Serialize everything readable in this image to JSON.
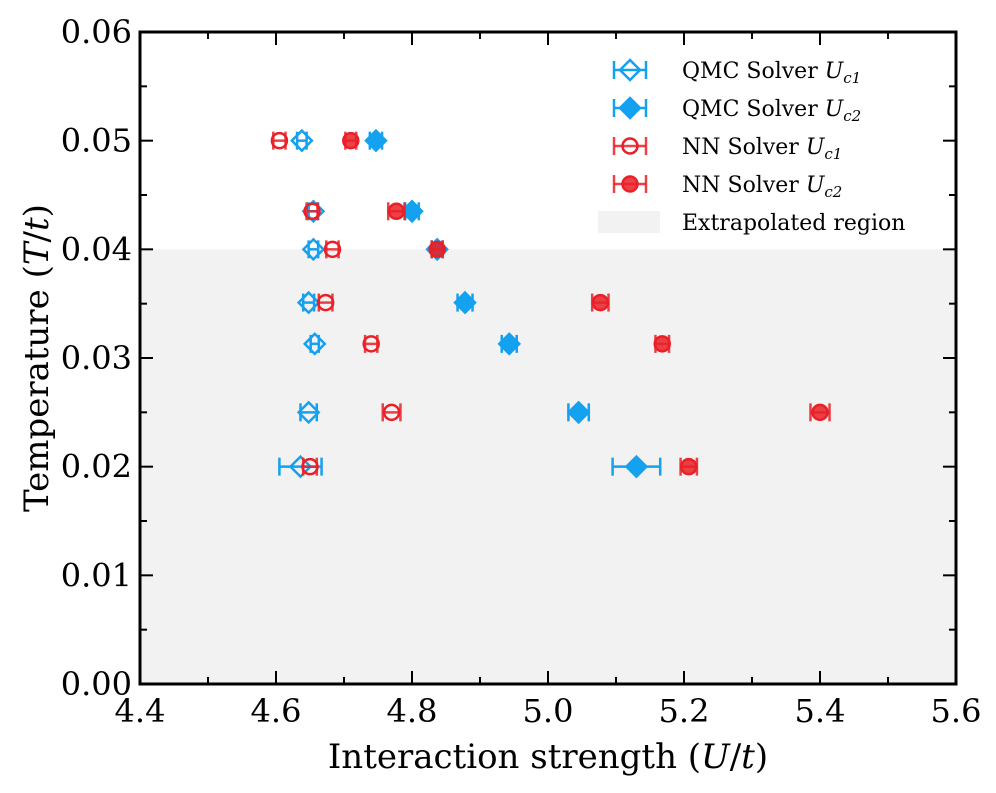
{
  "chart_data": {
    "type": "scatter",
    "xlabel": "Interaction strength (U/t)",
    "ylabel": "Temperature (T/t)",
    "xlim": [
      4.4,
      5.6
    ],
    "ylim": [
      0.0,
      0.06
    ],
    "x_ticks": [
      "4.4",
      "4.6",
      "4.8",
      "5.0",
      "5.2",
      "5.4",
      "5.6"
    ],
    "y_ticks": [
      "0.00",
      "0.01",
      "0.02",
      "0.03",
      "0.04",
      "0.05",
      "0.06"
    ],
    "x_tick_values": [
      4.4,
      4.6,
      4.8,
      5.0,
      5.2,
      5.4,
      5.6
    ],
    "y_tick_values": [
      0.0,
      0.01,
      0.02,
      0.03,
      0.04,
      0.05,
      0.06
    ],
    "shaded_region": {
      "label": "Extrapolated region",
      "y_range": [
        0.0,
        0.04
      ],
      "color": "#f2f2f2"
    },
    "series": [
      {
        "name": "QMC Solver U_c1",
        "label_text": "QMC Solver ",
        "label_sym": "U",
        "label_sub": "c1",
        "marker": "diamond",
        "filled": false,
        "color": "#13a1f0",
        "points": [
          {
            "x": 4.636,
            "y": 0.02,
            "xerr": 0.031
          },
          {
            "x": 4.648,
            "y": 0.025,
            "xerr": 0.012
          },
          {
            "x": 4.657,
            "y": 0.0313,
            "xerr": 0.006
          },
          {
            "x": 4.648,
            "y": 0.0351,
            "xerr": 0.008
          },
          {
            "x": 4.655,
            "y": 0.04,
            "xerr": 0.007
          },
          {
            "x": 4.655,
            "y": 0.0435,
            "xerr": 0.007
          },
          {
            "x": 4.638,
            "y": 0.05,
            "xerr": 0.007
          }
        ]
      },
      {
        "name": "QMC Solver U_c2",
        "label_text": "QMC Solver ",
        "label_sym": "U",
        "label_sub": "c2",
        "marker": "diamond",
        "filled": true,
        "color": "#13a1f0",
        "points": [
          {
            "x": 5.13,
            "y": 0.02,
            "xerr": 0.035
          },
          {
            "x": 5.045,
            "y": 0.025,
            "xerr": 0.015
          },
          {
            "x": 4.943,
            "y": 0.0313,
            "xerr": 0.011
          },
          {
            "x": 4.878,
            "y": 0.0351,
            "xerr": 0.011
          },
          {
            "x": 4.837,
            "y": 0.04,
            "xerr": 0.008
          },
          {
            "x": 4.8,
            "y": 0.0435,
            "xerr": 0.01
          },
          {
            "x": 4.747,
            "y": 0.05,
            "xerr": 0.009
          }
        ]
      },
      {
        "name": "NN Solver U_c1",
        "label_text": "NN Solver ",
        "label_sym": "U",
        "label_sub": "c1",
        "marker": "circle",
        "filled": false,
        "color": "#e92027",
        "points": [
          {
            "x": 4.65,
            "y": 0.02,
            "xerr": 0.01
          },
          {
            "x": 4.77,
            "y": 0.025,
            "xerr": 0.013
          },
          {
            "x": 4.74,
            "y": 0.0313,
            "xerr": 0.009
          },
          {
            "x": 4.673,
            "y": 0.0351,
            "xerr": 0.01
          },
          {
            "x": 4.683,
            "y": 0.04,
            "xerr": 0.009
          },
          {
            "x": 4.653,
            "y": 0.0435,
            "xerr": 0.008
          },
          {
            "x": 4.605,
            "y": 0.05,
            "xerr": 0.009
          }
        ]
      },
      {
        "name": "NN Solver U_c2",
        "label_text": "NN Solver ",
        "label_sym": "U",
        "label_sub": "c2",
        "marker": "circle",
        "filled": true,
        "color": "#e92027",
        "points": [
          {
            "x": 5.207,
            "y": 0.02,
            "xerr": 0.012
          },
          {
            "x": 5.4,
            "y": 0.025,
            "xerr": 0.014
          },
          {
            "x": 5.168,
            "y": 0.0313,
            "xerr": 0.01
          },
          {
            "x": 5.077,
            "y": 0.0351,
            "xerr": 0.012
          },
          {
            "x": 4.837,
            "y": 0.04,
            "xerr": 0.008
          },
          {
            "x": 4.777,
            "y": 0.0435,
            "xerr": 0.012
          },
          {
            "x": 4.71,
            "y": 0.05,
            "xerr": 0.008
          }
        ]
      }
    ]
  }
}
